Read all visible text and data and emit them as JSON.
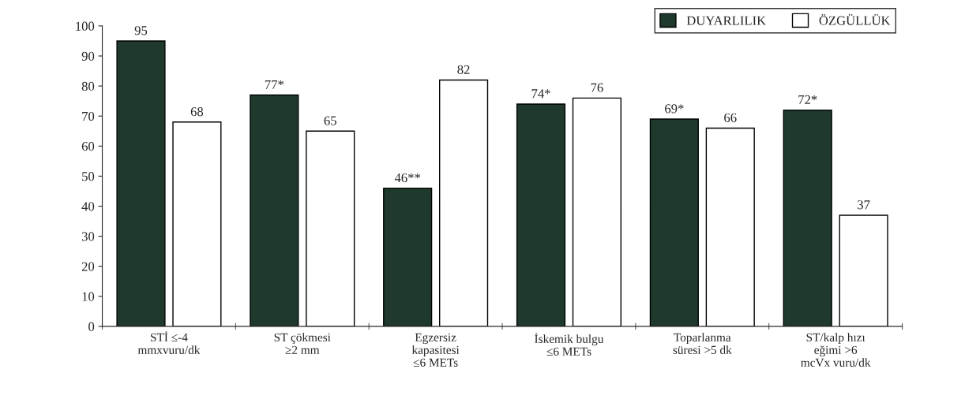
{
  "chart_data": {
    "type": "bar",
    "categories": [
      "STİ ≤-4\nmmxvuru/dk",
      "ST çökmesi\n≥2 mm",
      "Egzersiz\nkapasitesi\n≤6 METs",
      "İskemik bulgu\n≤6 METs",
      "Toparlanma\nsüresi >5 dk",
      "ST/kalp hızı\neğimi >6\nmcVx vuru/dk"
    ],
    "series": [
      {
        "name": "DUYARLILIK",
        "color": "#1f3a2c",
        "values": [
          95,
          77,
          46,
          74,
          69,
          72
        ],
        "value_labels": [
          "95",
          "77*",
          "46**",
          "74*",
          "69*",
          "72*"
        ]
      },
      {
        "name": "ÖZGÜLLÜK",
        "color": "#ffffff",
        "values": [
          68,
          65,
          82,
          76,
          66,
          37
        ],
        "value_labels": [
          "68",
          "65",
          "82",
          "76",
          "66",
          "37"
        ]
      }
    ],
    "ylim": [
      0,
      100
    ],
    "yticks": [
      0,
      10,
      20,
      30,
      40,
      50,
      60,
      70,
      80,
      90,
      100
    ],
    "grid": false,
    "legend": "top right"
  }
}
